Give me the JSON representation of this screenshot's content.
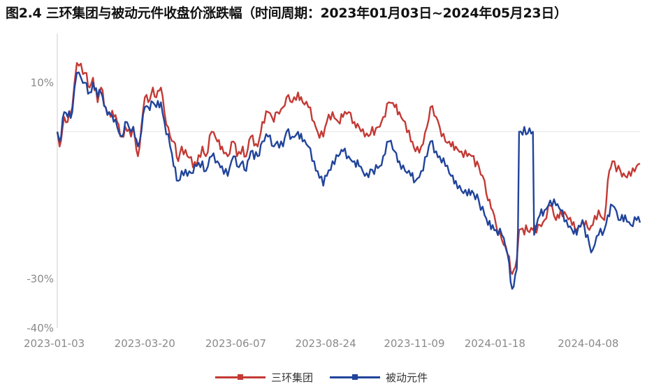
{
  "title": "图2.4 三环集团与被动元件收盘价涨跌幅（时间周期：2023年01月03日~2024年05月23日）",
  "colors": {
    "sanhuan": "#c33a35",
    "passive": "#21449b",
    "axis": "#cccccc",
    "grid": "#e6e6e6",
    "tick": "#8a8a8a"
  },
  "chart_data": {
    "type": "line",
    "title": "图2.4 三环集团与被动元件收盘价涨跌幅（时间周期：2023年01月03日~2024年05月23日）",
    "xlabel": "",
    "ylabel": "",
    "x_ticks": [
      "2023-01-03",
      "2023-03-20",
      "2023-06-07",
      "2023-08-24",
      "2023-11-09",
      "2024-01-18",
      "2024-04-08"
    ],
    "y_ticks": [
      {
        "value": 10,
        "label": "10%"
      },
      {
        "value": -30,
        "label": "-30%"
      },
      {
        "value": -40,
        "label": "-40%"
      }
    ],
    "ylim": [
      -40,
      20
    ],
    "x_range": [
      "2023-01-03",
      "2024-05-23"
    ],
    "grid": "reference line at 0%",
    "legend_position": "bottom-center",
    "series": [
      {
        "name": "三环集团",
        "color": "#c33a35",
        "points": [
          [
            "2023-01-03",
            0
          ],
          [
            "2023-01-05",
            -3
          ],
          [
            "2023-01-09",
            3
          ],
          [
            "2023-01-12",
            2
          ],
          [
            "2023-01-16",
            5
          ],
          [
            "2023-01-18",
            10
          ],
          [
            "2023-01-20",
            14
          ],
          [
            "2023-01-27",
            12
          ],
          [
            "2023-01-31",
            9
          ],
          [
            "2023-02-03",
            11
          ],
          [
            "2023-02-07",
            6
          ],
          [
            "2023-02-10",
            9
          ],
          [
            "2023-02-14",
            5
          ],
          [
            "2023-02-17",
            4
          ],
          [
            "2023-02-21",
            3
          ],
          [
            "2023-02-24",
            2
          ],
          [
            "2023-02-28",
            -1
          ],
          [
            "2023-03-03",
            1
          ],
          [
            "2023-03-08",
            -1
          ],
          [
            "2023-03-10",
            1
          ],
          [
            "2023-03-14",
            -5
          ],
          [
            "2023-03-17",
            1
          ],
          [
            "2023-03-20",
            7
          ],
          [
            "2023-03-23",
            6
          ],
          [
            "2023-03-27",
            9
          ],
          [
            "2023-03-30",
            7
          ],
          [
            "2023-04-03",
            9
          ],
          [
            "2023-04-06",
            4
          ],
          [
            "2023-04-11",
            -1
          ],
          [
            "2023-04-14",
            -2
          ],
          [
            "2023-04-18",
            -6
          ],
          [
            "2023-04-21",
            -3
          ],
          [
            "2023-04-26",
            -5
          ],
          [
            "2023-05-04",
            -7
          ],
          [
            "2023-05-09",
            -3
          ],
          [
            "2023-05-12",
            -5
          ],
          [
            "2023-05-17",
            0
          ],
          [
            "2023-05-22",
            -2
          ],
          [
            "2023-05-26",
            -3
          ],
          [
            "2023-05-31",
            -5
          ],
          [
            "2023-06-05",
            -2
          ],
          [
            "2023-06-08",
            -5
          ],
          [
            "2023-06-13",
            -3
          ],
          [
            "2023-06-16",
            -5
          ],
          [
            "2023-06-20",
            -1
          ],
          [
            "2023-06-26",
            -3
          ],
          [
            "2023-06-30",
            2
          ],
          [
            "2023-07-05",
            4
          ],
          [
            "2023-07-10",
            2
          ],
          [
            "2023-07-13",
            4
          ],
          [
            "2023-07-18",
            5
          ],
          [
            "2023-07-21",
            7
          ],
          [
            "2023-07-26",
            6
          ],
          [
            "2023-07-31",
            8
          ],
          [
            "2023-08-04",
            6
          ],
          [
            "2023-08-09",
            5
          ],
          [
            "2023-08-14",
            2
          ],
          [
            "2023-08-17",
            0
          ],
          [
            "2023-08-22",
            -1
          ],
          [
            "2023-08-25",
            2
          ],
          [
            "2023-08-30",
            4
          ],
          [
            "2023-09-04",
            2
          ],
          [
            "2023-09-08",
            3
          ],
          [
            "2023-09-13",
            4
          ],
          [
            "2023-09-18",
            2
          ],
          [
            "2023-09-22",
            1
          ],
          [
            "2023-09-27",
            -1
          ],
          [
            "2023-10-10",
            1
          ],
          [
            "2023-10-13",
            3
          ],
          [
            "2023-10-18",
            6
          ],
          [
            "2023-10-23",
            5
          ],
          [
            "2023-10-27",
            4
          ],
          [
            "2023-11-01",
            2
          ],
          [
            "2023-11-06",
            -2
          ],
          [
            "2023-11-10",
            -4
          ],
          [
            "2023-11-15",
            -3
          ],
          [
            "2023-11-20",
            1
          ],
          [
            "2023-11-23",
            5
          ],
          [
            "2023-11-28",
            3
          ],
          [
            "2023-12-01",
            1
          ],
          [
            "2023-12-06",
            -2
          ],
          [
            "2023-12-11",
            -3
          ],
          [
            "2023-12-15",
            -3
          ],
          [
            "2023-12-20",
            -4
          ],
          [
            "2023-12-25",
            -5
          ],
          [
            "2023-12-29",
            -5
          ],
          [
            "2024-01-04",
            -7
          ],
          [
            "2024-01-09",
            -10
          ],
          [
            "2024-01-12",
            -14
          ],
          [
            "2024-01-16",
            -16
          ],
          [
            "2024-01-19",
            -19
          ],
          [
            "2024-01-24",
            -22
          ],
          [
            "2024-01-29",
            -25
          ],
          [
            "2024-02-02",
            -29
          ],
          [
            "2024-02-06",
            -26
          ],
          [
            "2024-02-08",
            -20
          ],
          [
            "2024-02-20",
            -20
          ],
          [
            "2024-02-26",
            -19
          ],
          [
            "2024-03-01",
            -18
          ],
          [
            "2024-03-06",
            -15
          ],
          [
            "2024-03-11",
            -18
          ],
          [
            "2024-03-15",
            -16
          ],
          [
            "2024-03-20",
            -17
          ],
          [
            "2024-03-25",
            -19
          ],
          [
            "2024-03-29",
            -20
          ],
          [
            "2024-04-03",
            -18
          ],
          [
            "2024-04-09",
            -20
          ],
          [
            "2024-04-12",
            -19
          ],
          [
            "2024-04-17",
            -16
          ],
          [
            "2024-04-22",
            -18
          ],
          [
            "2024-04-25",
            -10
          ],
          [
            "2024-04-29",
            -6
          ],
          [
            "2024-05-06",
            -8
          ],
          [
            "2024-05-10",
            -9
          ],
          [
            "2024-05-15",
            -9
          ],
          [
            "2024-05-20",
            -7
          ],
          [
            "2024-05-23",
            -6.5
          ]
        ]
      },
      {
        "name": "被动元件",
        "color": "#21449b",
        "points": [
          [
            "2023-01-03",
            0
          ],
          [
            "2023-01-05",
            -2
          ],
          [
            "2023-01-09",
            4
          ],
          [
            "2023-01-12",
            3
          ],
          [
            "2023-01-16",
            4
          ],
          [
            "2023-01-18",
            9
          ],
          [
            "2023-01-20",
            12
          ],
          [
            "2023-01-27",
            10
          ],
          [
            "2023-01-31",
            8
          ],
          [
            "2023-02-03",
            10
          ],
          [
            "2023-02-07",
            7
          ],
          [
            "2023-02-10",
            8
          ],
          [
            "2023-02-14",
            5
          ],
          [
            "2023-02-17",
            4
          ],
          [
            "2023-02-21",
            2
          ],
          [
            "2023-02-24",
            1
          ],
          [
            "2023-02-28",
            -1
          ],
          [
            "2023-03-03",
            2
          ],
          [
            "2023-03-08",
            0
          ],
          [
            "2023-03-10",
            1
          ],
          [
            "2023-03-14",
            -3
          ],
          [
            "2023-03-17",
            0
          ],
          [
            "2023-03-20",
            5
          ],
          [
            "2023-03-23",
            5
          ],
          [
            "2023-03-27",
            6
          ],
          [
            "2023-03-30",
            5
          ],
          [
            "2023-04-03",
            6
          ],
          [
            "2023-04-06",
            2
          ],
          [
            "2023-04-11",
            -3
          ],
          [
            "2023-04-14",
            -7
          ],
          [
            "2023-04-18",
            -10
          ],
          [
            "2023-04-21",
            -8
          ],
          [
            "2023-04-26",
            -9
          ],
          [
            "2023-05-04",
            -7
          ],
          [
            "2023-05-09",
            -6
          ],
          [
            "2023-05-12",
            -8
          ],
          [
            "2023-05-17",
            -5
          ],
          [
            "2023-05-22",
            -6
          ],
          [
            "2023-05-26",
            -7
          ],
          [
            "2023-05-31",
            -9
          ],
          [
            "2023-06-05",
            -5
          ],
          [
            "2023-06-08",
            -7
          ],
          [
            "2023-06-13",
            -6
          ],
          [
            "2023-06-16",
            -8
          ],
          [
            "2023-06-20",
            -4
          ],
          [
            "2023-06-26",
            -5
          ],
          [
            "2023-06-30",
            -2
          ],
          [
            "2023-07-05",
            -1
          ],
          [
            "2023-07-10",
            -3
          ],
          [
            "2023-07-13",
            -2
          ],
          [
            "2023-07-18",
            -3
          ],
          [
            "2023-07-21",
            0
          ],
          [
            "2023-07-26",
            -1
          ],
          [
            "2023-07-31",
            0
          ],
          [
            "2023-08-04",
            -2
          ],
          [
            "2023-08-09",
            -3
          ],
          [
            "2023-08-14",
            -6
          ],
          [
            "2023-08-17",
            -8
          ],
          [
            "2023-08-22",
            -11
          ],
          [
            "2023-08-25",
            -9
          ],
          [
            "2023-08-30",
            -6
          ],
          [
            "2023-09-04",
            -5
          ],
          [
            "2023-09-08",
            -4
          ],
          [
            "2023-09-13",
            -5
          ],
          [
            "2023-09-18",
            -6
          ],
          [
            "2023-09-22",
            -7
          ],
          [
            "2023-09-27",
            -9
          ],
          [
            "2023-10-10",
            -7
          ],
          [
            "2023-10-13",
            -5
          ],
          [
            "2023-10-18",
            -2
          ],
          [
            "2023-10-23",
            -4
          ],
          [
            "2023-10-27",
            -6
          ],
          [
            "2023-11-01",
            -8
          ],
          [
            "2023-11-06",
            -9
          ],
          [
            "2023-11-10",
            -10
          ],
          [
            "2023-11-15",
            -8
          ],
          [
            "2023-11-20",
            -5
          ],
          [
            "2023-11-23",
            -2
          ],
          [
            "2023-11-28",
            -4
          ],
          [
            "2023-12-01",
            -5
          ],
          [
            "2023-12-06",
            -7
          ],
          [
            "2023-12-11",
            -9
          ],
          [
            "2023-12-15",
            -10
          ],
          [
            "2023-12-20",
            -12
          ],
          [
            "2023-12-25",
            -13
          ],
          [
            "2023-12-29",
            -12
          ],
          [
            "2024-01-04",
            -14
          ],
          [
            "2024-01-09",
            -17
          ],
          [
            "2024-01-12",
            -19
          ],
          [
            "2024-01-16",
            -19
          ],
          [
            "2024-01-19",
            -20
          ],
          [
            "2024-01-24",
            -21
          ],
          [
            "2024-01-29",
            -25
          ],
          [
            "2024-02-02",
            -32
          ],
          [
            "2024-02-06",
            -28
          ],
          [
            "2024-02-07",
            -20
          ],
          [
            "2024-02-08",
            0
          ],
          [
            "2024-02-20",
            0
          ],
          [
            "2024-02-21",
            -21
          ],
          [
            "2024-02-26",
            -17
          ],
          [
            "2024-03-01",
            -16
          ],
          [
            "2024-03-06",
            -14
          ],
          [
            "2024-03-11",
            -15
          ],
          [
            "2024-03-15",
            -16
          ],
          [
            "2024-03-20",
            -18
          ],
          [
            "2024-03-25",
            -20
          ],
          [
            "2024-03-29",
            -21
          ],
          [
            "2024-04-03",
            -18
          ],
          [
            "2024-04-09",
            -23
          ],
          [
            "2024-04-12",
            -24
          ],
          [
            "2024-04-17",
            -21
          ],
          [
            "2024-04-22",
            -20
          ],
          [
            "2024-04-25",
            -17
          ],
          [
            "2024-04-29",
            -15
          ],
          [
            "2024-05-06",
            -18
          ],
          [
            "2024-05-10",
            -17
          ],
          [
            "2024-05-15",
            -19
          ],
          [
            "2024-05-20",
            -18
          ],
          [
            "2024-05-23",
            -18.5
          ]
        ]
      }
    ]
  }
}
